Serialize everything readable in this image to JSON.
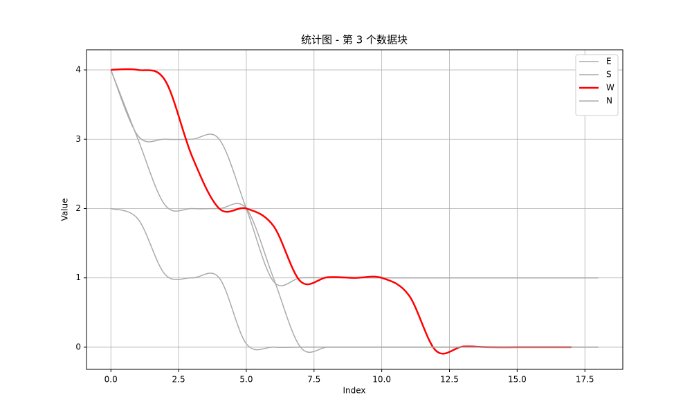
{
  "chart_data": {
    "type": "line",
    "title": "统计图 - 第 3 个数据块",
    "x_label": "Index",
    "y_label": "Value",
    "xlim": [
      -0.9,
      18.9
    ],
    "ylim": [
      -0.32,
      4.29
    ],
    "xticks": [
      {
        "value": 0,
        "label": "0.0"
      },
      {
        "value": 2.5,
        "label": "2.5"
      },
      {
        "value": 5,
        "label": "5.0"
      },
      {
        "value": 7.5,
        "label": "7.5"
      },
      {
        "value": 10,
        "label": "10.0"
      },
      {
        "value": 12.5,
        "label": "12.5"
      },
      {
        "value": 15,
        "label": "15.0"
      },
      {
        "value": 17.5,
        "label": "17.5"
      }
    ],
    "yticks": [
      0,
      1,
      2,
      3,
      4
    ],
    "grid": true,
    "legend": "upper right",
    "series": [
      {
        "name": "E",
        "color": "#aaaaaa",
        "x": [
          0,
          1,
          2,
          3,
          4,
          5,
          6,
          7,
          8,
          9,
          10,
          11,
          12,
          13,
          14,
          15,
          16,
          17,
          18
        ],
        "values": [
          4,
          3.05,
          3.0,
          3.0,
          3.0,
          2.0,
          0.95,
          1.0,
          1.0,
          1.0,
          1.0,
          1.0,
          1.0,
          1.0,
          1.0,
          1.0,
          1.0,
          1.0,
          1.0
        ]
      },
      {
        "name": "S",
        "color": "#aaaaaa",
        "x": [
          0,
          1,
          2,
          3,
          4,
          5,
          6,
          7,
          8,
          9,
          10,
          11,
          12,
          13,
          14,
          15,
          16,
          17,
          18
        ],
        "values": [
          4,
          3.0,
          2.05,
          2.0,
          2.0,
          2.0,
          1.0,
          0.0,
          0.0,
          0.0,
          0.0,
          0.0,
          0.0,
          0.0,
          0.0,
          0.0,
          0.0,
          0.0,
          0.0
        ]
      },
      {
        "name": "W",
        "color": "#ff0000",
        "x": [
          0,
          1,
          2,
          3,
          4,
          5,
          6,
          7,
          8,
          9,
          10,
          11,
          12,
          13,
          14,
          15,
          16,
          17
        ],
        "values": [
          4,
          4.0,
          3.85,
          2.75,
          2.0,
          2.0,
          1.75,
          0.95,
          1.01,
          1.0,
          1.0,
          0.75,
          -0.05,
          0.01,
          0.0,
          0.0,
          0.0,
          0.0
        ]
      },
      {
        "name": "N",
        "color": "#aaaaaa",
        "x": [
          0,
          1,
          2,
          3,
          4,
          5,
          6,
          7,
          8,
          9,
          10,
          11,
          12,
          13,
          14,
          15,
          16,
          17,
          18
        ],
        "values": [
          2,
          1.85,
          1.05,
          1.0,
          1.0,
          0.05,
          0.0,
          0.0,
          0.0,
          0.0,
          0.0,
          0.0,
          0.0,
          0.0,
          0.0,
          0.0,
          0.0,
          0.0,
          0.0
        ]
      }
    ]
  }
}
